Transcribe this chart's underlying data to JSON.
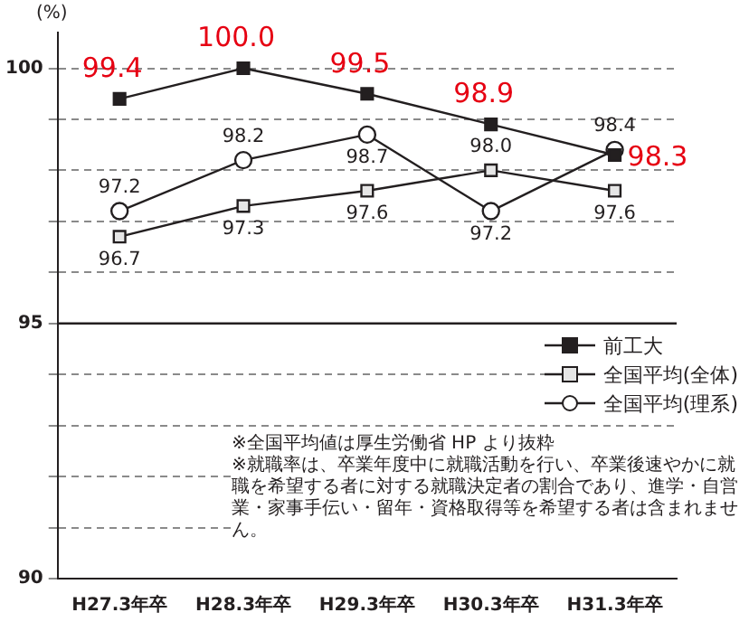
{
  "chart_data": {
    "type": "line",
    "ylabel": "(%)",
    "categories": [
      "H27.3年卒",
      "H28.3年卒",
      "H29.3年卒",
      "H30.3年卒",
      "H31.3年卒"
    ],
    "series": [
      {
        "name": "前工大",
        "color": "#231f20",
        "marker": "square",
        "values": [
          99.4,
          100.0,
          99.5,
          98.9,
          98.3
        ],
        "value_labels": [
          "99.4",
          "100.0",
          "99.5",
          "98.9",
          "98.3"
        ]
      },
      {
        "name": "全国平均(全体)",
        "color": "#231f20",
        "marker": "square",
        "values": [
          96.7,
          97.3,
          97.6,
          98.0,
          97.6
        ],
        "value_labels": [
          "96.7",
          "97.3",
          "97.6",
          "98.0",
          "97.6"
        ]
      },
      {
        "name": "全国平均(理系)",
        "color": "#231f20",
        "marker": "circle",
        "values": [
          97.2,
          98.2,
          98.7,
          97.2,
          98.4
        ],
        "value_labels": [
          "97.2",
          "98.2",
          "98.7",
          "97.2",
          "98.4"
        ]
      }
    ],
    "ylim": [
      90,
      100.7
    ],
    "yticks": [
      90,
      {
        "value": 91,
        "label": null
      },
      {
        "value": 92,
        "label": null
      },
      {
        "value": 93,
        "label": null
      },
      {
        "value": 94,
        "label": null
      },
      95,
      {
        "value": 96,
        "label": null
      },
      {
        "value": 97,
        "label": null
      },
      {
        "value": 98,
        "label": null
      },
      {
        "value": 99,
        "label": null
      },
      100
    ],
    "grid": "y",
    "legend": "right",
    "ref_lines": [
      {
        "axis": "y",
        "value": 95,
        "color": "#231f20"
      }
    ],
    "annotations": [
      "※全国平均値は厚生労働省 HP より抜粋",
      "※就職率は、卒業年度中に就職活動を行い、卒業後速やかに就職を希望する者に対する就職決定者の割合であり、進学・自営業・家事手伝い・留年・資格取得等を希望する者は含まれません。"
    ]
  }
}
